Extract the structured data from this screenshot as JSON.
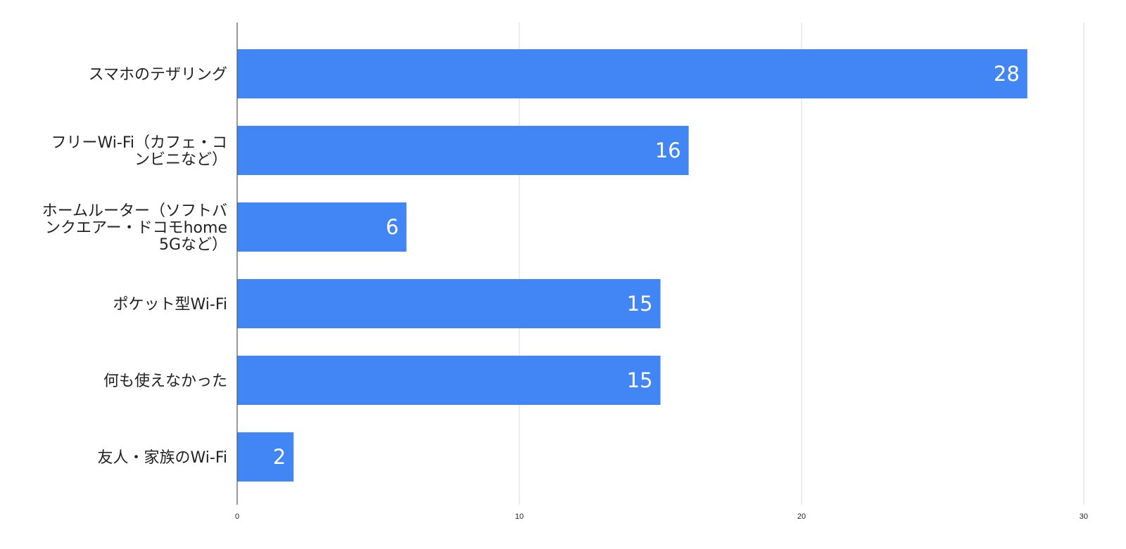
{
  "chart_data": {
    "type": "bar",
    "orientation": "horizontal",
    "categories": [
      [
        "スマホのテザリング"
      ],
      [
        "フリーWi-Fi（カフェ・コ",
        "ンビニなど）"
      ],
      [
        "ホームルーター（ソフトバ",
        "ンクエアー・ドコモhome",
        "5Gなど）"
      ],
      [
        "ポケット型Wi-Fi"
      ],
      [
        "何も使えなかった"
      ],
      [
        "友人・家族のWi-Fi"
      ]
    ],
    "values": [
      28,
      16,
      6,
      15,
      15,
      2
    ],
    "xlim": [
      0,
      30
    ],
    "xticks": [
      0,
      10,
      20,
      30
    ],
    "data_labels": true,
    "grid": true,
    "legend": "none",
    "title": "",
    "xlabel": "",
    "ylabel": ""
  },
  "colors": {
    "bar": "#4285F4",
    "grid": "#d9d9d9",
    "axis": "#555555"
  }
}
